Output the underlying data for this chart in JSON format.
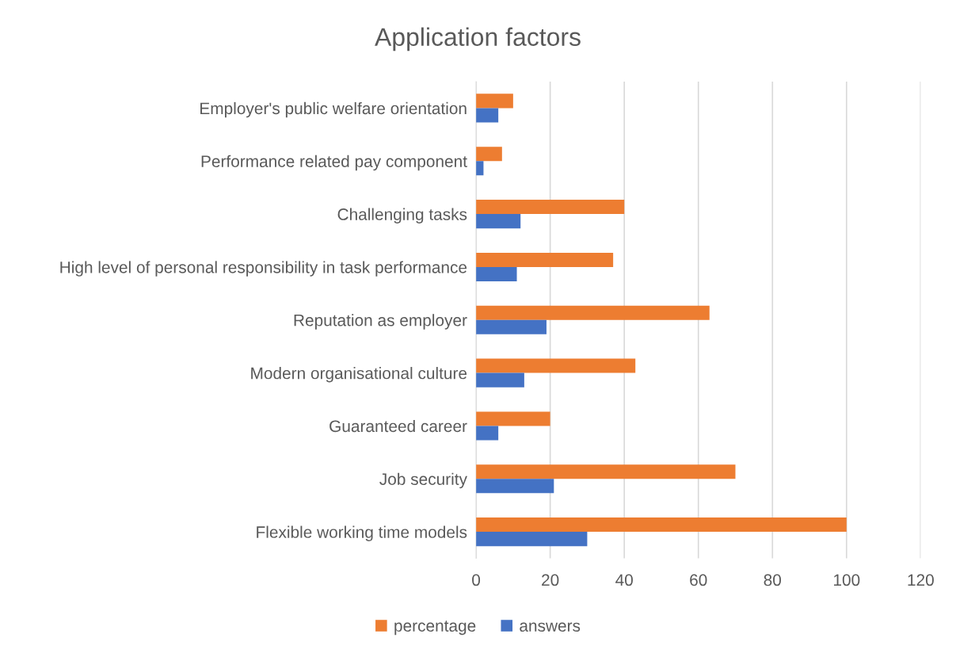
{
  "chart_data": {
    "type": "bar",
    "orientation": "horizontal",
    "title": "Application factors",
    "categories": [
      "Employer's public welfare orientation",
      "Performance related pay component",
      "Challenging tasks",
      "High level of personal responsibility in task performance",
      "Reputation as employer",
      "Modern organisational culture",
      "Guaranteed career",
      "Job security",
      "Flexible working time models"
    ],
    "series": [
      {
        "name": "percentage",
        "color": "#ed7d31",
        "values": [
          10,
          7,
          40,
          37,
          63,
          43,
          20,
          70,
          100
        ]
      },
      {
        "name": "answers",
        "color": "#4472c4",
        "values": [
          6,
          2,
          12,
          11,
          19,
          13,
          6,
          21,
          30
        ]
      }
    ],
    "xlim": [
      0,
      120
    ],
    "xticks": [
      0,
      20,
      40,
      60,
      80,
      100,
      120
    ],
    "grid": "x",
    "legend": "bottom"
  }
}
